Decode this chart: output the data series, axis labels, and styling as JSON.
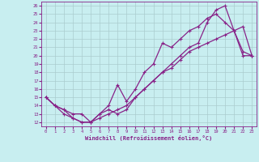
{
  "title": "",
  "xlabel": "Windchill (Refroidissement éolien,°C)",
  "bg_color": "#c8eef0",
  "grid_color": "#aaccce",
  "line_color": "#882288",
  "xlim": [
    -0.5,
    23.5
  ],
  "ylim": [
    11.5,
    26.5
  ],
  "xticks": [
    0,
    1,
    2,
    3,
    4,
    5,
    6,
    7,
    8,
    9,
    10,
    11,
    12,
    13,
    14,
    15,
    16,
    17,
    18,
    19,
    20,
    21,
    22,
    23
  ],
  "yticks": [
    12,
    13,
    14,
    15,
    16,
    17,
    18,
    19,
    20,
    21,
    22,
    23,
    24,
    25,
    26
  ],
  "line1_x": [
    0,
    1,
    2,
    3,
    4,
    5,
    6,
    7,
    8,
    9,
    10,
    11,
    12,
    13,
    14,
    15,
    16,
    17,
    18,
    19,
    20,
    21,
    22,
    23
  ],
  "line1_y": [
    15,
    14,
    13.5,
    13,
    13,
    12,
    13,
    13.5,
    13,
    13.5,
    15,
    16,
    17,
    18,
    19,
    20,
    21,
    21.5,
    24,
    25.5,
    26,
    23,
    20.5,
    20
  ],
  "line2_x": [
    0,
    1,
    2,
    3,
    4,
    5,
    6,
    7,
    8,
    9,
    10,
    11,
    12,
    13,
    14,
    15,
    16,
    17,
    18,
    19,
    20,
    21,
    22,
    23
  ],
  "line2_y": [
    15,
    14,
    13,
    12.5,
    12,
    12,
    13,
    14,
    16.5,
    14.5,
    16,
    18,
    19,
    21.5,
    21,
    22,
    23,
    23.5,
    24.5,
    25,
    24,
    23,
    20,
    20
  ],
  "line3_x": [
    0,
    1,
    2,
    3,
    4,
    5,
    6,
    7,
    8,
    9,
    10,
    11,
    12,
    13,
    14,
    15,
    16,
    17,
    18,
    19,
    20,
    21,
    22,
    23
  ],
  "line3_y": [
    15,
    14,
    13.5,
    12.5,
    12,
    12,
    12.5,
    13,
    13.5,
    14,
    15,
    16,
    17,
    18,
    18.5,
    19.5,
    20.5,
    21,
    21.5,
    22,
    22.5,
    23,
    23.5,
    20
  ]
}
